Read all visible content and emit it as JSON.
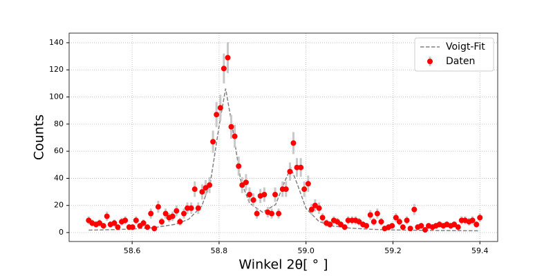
{
  "chart_data": {
    "type": "scatter",
    "x_label": "Winkel 2θ[ ° ]",
    "y_label": "Counts",
    "xlim": [
      58.455,
      59.441
    ],
    "ylim": [
      -6.6,
      147.1
    ],
    "xticks": [
      58.6,
      58.8,
      {
        "value": 59,
        "label": "59.0"
      },
      59.2,
      59.4
    ],
    "yticks": [
      0,
      20,
      40,
      60,
      80,
      100,
      120,
      140
    ],
    "grid": true,
    "legend": "upper right",
    "series": [
      {
        "name": "Voigt-Fit",
        "type": "line",
        "color": "#808080",
        "x": [
          58.5,
          58.55,
          58.6,
          58.65,
          58.7,
          58.73,
          58.76,
          58.78,
          58.8,
          58.815,
          58.83,
          58.85,
          58.87,
          58.9,
          58.93,
          58.95,
          58.965,
          58.98,
          59.0,
          59.03,
          59.06,
          59.1,
          59.15,
          59.2,
          59.3,
          59.4
        ],
        "values": [
          1.8,
          2.1,
          2.6,
          3.6,
          6.1,
          9.8,
          19.4,
          36.9,
          78.5,
          106.2,
          79,
          38.1,
          21.7,
          15,
          20.6,
          36.8,
          47.8,
          35.7,
          17.8,
          8.1,
          4.9,
          3.3,
          2.4,
          1.9,
          1.5,
          1.3
        ]
      },
      {
        "name": "Daten",
        "type": "errorbar",
        "color": "#ff0000",
        "error_color": "#c8c8c8",
        "x": [
          58.5,
          58.508,
          58.517,
          58.525,
          58.534,
          58.542,
          58.55,
          58.559,
          58.567,
          58.576,
          58.584,
          58.593,
          58.601,
          58.609,
          58.618,
          58.626,
          58.635,
          58.643,
          58.651,
          58.66,
          58.668,
          58.677,
          58.685,
          58.693,
          58.702,
          58.71,
          58.719,
          58.727,
          58.736,
          58.744,
          58.752,
          58.761,
          58.769,
          58.778,
          58.786,
          58.794,
          58.803,
          58.811,
          58.82,
          58.828,
          58.836,
          58.845,
          58.853,
          58.862,
          58.87,
          58.879,
          58.887,
          58.895,
          58.904,
          58.912,
          58.921,
          58.929,
          58.937,
          58.946,
          58.954,
          58.963,
          58.971,
          58.979,
          58.988,
          58.996,
          59.005,
          59.013,
          59.021,
          59.03,
          59.038,
          59.047,
          59.055,
          59.064,
          59.072,
          59.08,
          59.089,
          59.097,
          59.106,
          59.114,
          59.122,
          59.131,
          59.139,
          59.148,
          59.156,
          59.164,
          59.173,
          59.181,
          59.19,
          59.198,
          59.207,
          59.215,
          59.223,
          59.232,
          59.24,
          59.249,
          59.257,
          59.265,
          59.274,
          59.282,
          59.291,
          59.299,
          59.307,
          59.316,
          59.324,
          59.333,
          59.341,
          59.35,
          59.358,
          59.366,
          59.375,
          59.383,
          59.392,
          59.4
        ],
        "values": [
          9,
          7,
          6,
          7,
          5,
          12,
          6,
          7,
          4,
          8,
          9,
          4,
          4,
          9,
          5,
          7,
          4,
          14,
          3,
          19,
          8,
          14,
          11,
          12,
          16,
          8,
          14,
          18,
          18,
          32,
          18,
          30,
          33,
          35,
          67,
          87,
          92,
          121,
          129,
          78,
          71,
          49,
          35,
          37,
          28,
          24,
          14,
          27,
          28,
          15,
          14,
          28,
          14,
          32,
          32,
          45,
          66,
          48,
          48,
          32,
          36,
          17,
          20,
          18,
          11,
          7,
          6,
          9,
          8,
          6,
          4,
          9,
          9,
          9,
          8,
          6,
          5,
          13,
          8,
          14,
          8,
          3,
          4,
          5,
          11,
          8,
          4,
          9,
          3,
          17,
          4,
          5,
          2,
          5,
          4,
          5,
          6,
          5,
          6,
          5,
          6,
          4,
          9,
          9,
          8,
          9,
          6,
          11
        ],
        "errors": [
          3,
          2.6,
          2.4,
          2.6,
          2.2,
          3.5,
          2.4,
          2.6,
          2,
          2.8,
          3,
          2,
          2,
          3,
          2.2,
          2.6,
          2,
          3.7,
          1.7,
          4.4,
          2.8,
          3.7,
          3.3,
          3.5,
          4,
          2.8,
          3.7,
          4.2,
          4.2,
          5.7,
          4.2,
          5.5,
          5.7,
          5.9,
          8.2,
          9.3,
          9.6,
          11,
          11.4,
          8.8,
          8.4,
          7,
          5.9,
          6.1,
          5.3,
          4.9,
          3.7,
          5.2,
          5.3,
          3.9,
          3.7,
          5.3,
          3.7,
          5.7,
          5.7,
          6.7,
          8.1,
          6.9,
          6.9,
          5.7,
          6,
          4.1,
          4.5,
          4.2,
          3.3,
          2.6,
          2.4,
          3,
          2.8,
          2.4,
          2,
          3,
          3,
          3,
          2.8,
          2.4,
          2.2,
          3.6,
          2.8,
          3.7,
          2.8,
          1.7,
          2,
          2.2,
          3.3,
          2.8,
          2,
          3,
          1.7,
          4.1,
          2,
          2.2,
          1.4,
          2.2,
          2,
          2.2,
          2.4,
          2.2,
          2.4,
          2.2,
          2.4,
          2,
          3,
          3,
          2.8,
          3,
          2.4,
          3.3
        ]
      }
    ]
  }
}
